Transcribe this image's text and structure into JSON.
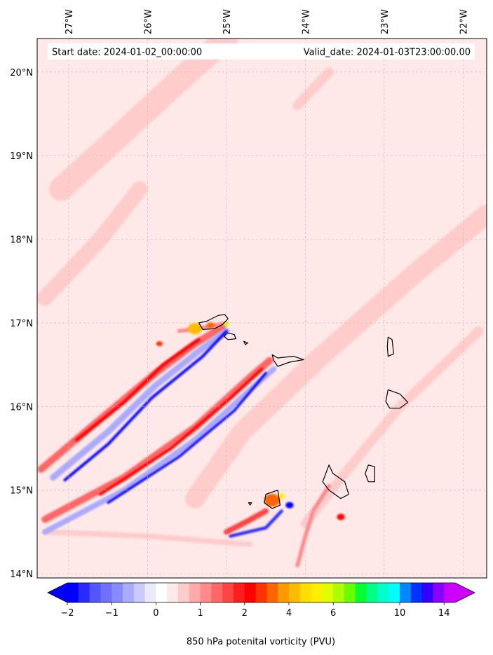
{
  "chart_data": {
    "type": "heatmap",
    "start_label": "Start date: 2024-01-02_00:00:00",
    "valid_label": "Valid_date: 2024-01-03T23:00:00.00",
    "lon_ticks": [
      {
        "value": -27,
        "label": "27°W"
      },
      {
        "value": -26,
        "label": "26°W"
      },
      {
        "value": -25,
        "label": "25°W"
      },
      {
        "value": -24,
        "label": "24°W"
      },
      {
        "value": -23,
        "label": "23°W"
      },
      {
        "value": -22,
        "label": "22°W"
      }
    ],
    "lat_ticks": [
      {
        "value": 14,
        "label": "14°N"
      },
      {
        "value": 15,
        "label": "15°N"
      },
      {
        "value": 16,
        "label": "16°N"
      },
      {
        "value": 17,
        "label": "17°N"
      },
      {
        "value": 18,
        "label": "18°N"
      },
      {
        "value": 19,
        "label": "19°N"
      },
      {
        "value": 20,
        "label": "20°N"
      }
    ],
    "lon_range": [
      -27.4,
      -21.7
    ],
    "lat_range": [
      13.95,
      20.4
    ],
    "grid": true,
    "background_value": 0.1,
    "colorbar": {
      "label": "850 hPa potenital vorticity (PVU)",
      "levels": [
        -2,
        -1.75,
        -1.5,
        -1.25,
        -1,
        -0.75,
        -0.5,
        -0.25,
        0,
        0.25,
        0.5,
        0.75,
        1,
        1.25,
        1.5,
        1.75,
        2,
        2.5,
        3,
        3.5,
        4,
        4.5,
        5,
        5.5,
        6,
        6.5,
        7,
        7.5,
        8,
        9,
        10,
        11,
        12,
        13,
        14
      ],
      "colors": [
        "#0000ff",
        "#2a2aff",
        "#5555ff",
        "#7070ff",
        "#8a8aff",
        "#aaaaff",
        "#cacaff",
        "#eaeaff",
        "#ffffff",
        "#ffe8e8",
        "#ffcccc",
        "#ffaaaa",
        "#ff8a8a",
        "#ff6666",
        "#ff4444",
        "#ff1c1c",
        "#ff0000",
        "#ff3300",
        "#ff6600",
        "#ff9900",
        "#ffbb00",
        "#ffdd00",
        "#ffee00",
        "#ddff00",
        "#aaff00",
        "#66ff00",
        "#00ff33",
        "#00ff88",
        "#00ffcc",
        "#00ffff",
        "#0088ff",
        "#0033ff",
        "#3300ff",
        "#8800ff",
        "#cc00ff"
      ],
      "under_color": "#0000ff",
      "over_color": "#cc00ff",
      "tick_labels": [
        {
          "value": -2,
          "label": "−2"
        },
        {
          "value": -1,
          "label": "−1"
        },
        {
          "value": 0,
          "label": "0"
        },
        {
          "value": 1,
          "label": "1"
        },
        {
          "value": 2,
          "label": "2"
        },
        {
          "value": 4,
          "label": "4"
        },
        {
          "value": 6,
          "label": "6"
        },
        {
          "value": 10,
          "label": "10"
        },
        {
          "value": 14,
          "label": "14"
        }
      ]
    },
    "features": [
      {
        "kind": "band",
        "value": 0.7,
        "pts": [
          [
            -21.7,
            18.3
          ],
          [
            -22.6,
            17.6
          ],
          [
            -23.8,
            16.6
          ],
          [
            -24.8,
            15.7
          ],
          [
            -25.4,
            14.9
          ]
        ],
        "w": 0.25
      },
      {
        "kind": "band",
        "value": 0.6,
        "pts": [
          [
            -21.8,
            16.9
          ],
          [
            -22.8,
            16.0
          ],
          [
            -23.5,
            15.2
          ],
          [
            -24.0,
            14.6
          ]
        ],
        "w": 0.12
      },
      {
        "kind": "band",
        "value": 0.7,
        "pts": [
          [
            -27.1,
            18.6
          ],
          [
            -26.4,
            19.2
          ],
          [
            -25.6,
            19.9
          ],
          [
            -25.0,
            20.4
          ]
        ],
        "w": 0.3
      },
      {
        "kind": "band",
        "value": 0.6,
        "pts": [
          [
            -27.3,
            17.3
          ],
          [
            -26.6,
            18.0
          ],
          [
            -26.1,
            18.6
          ]
        ],
        "w": 0.2
      },
      {
        "kind": "band",
        "value": 0.6,
        "pts": [
          [
            -24.1,
            19.6
          ],
          [
            -23.7,
            20.0
          ]
        ],
        "w": 0.12
      },
      {
        "kind": "band",
        "value": 0.5,
        "pts": [
          [
            -27.3,
            14.5
          ],
          [
            -26.0,
            14.45
          ],
          [
            -24.7,
            14.35
          ]
        ],
        "w": 0.07
      },
      {
        "kind": "band",
        "value": 1.3,
        "pts": [
          [
            -27.35,
            15.25
          ],
          [
            -26.6,
            15.85
          ],
          [
            -25.9,
            16.4
          ],
          [
            -25.4,
            16.75
          ],
          [
            -25.05,
            16.95
          ]
        ],
        "w": 0.09
      },
      {
        "kind": "band",
        "value": 2.0,
        "pts": [
          [
            -26.9,
            15.6
          ],
          [
            -26.3,
            16.05
          ],
          [
            -25.8,
            16.5
          ],
          [
            -25.35,
            16.8
          ]
        ],
        "w": 0.04
      },
      {
        "kind": "band",
        "value": -0.6,
        "pts": [
          [
            -27.2,
            15.15
          ],
          [
            -26.5,
            15.7
          ],
          [
            -25.9,
            16.25
          ],
          [
            -25.3,
            16.7
          ],
          [
            -25.0,
            16.9
          ]
        ],
        "w": 0.08
      },
      {
        "kind": "band",
        "value": -1.9,
        "pts": [
          [
            -27.05,
            15.12
          ],
          [
            -26.5,
            15.55
          ],
          [
            -25.95,
            16.1
          ],
          [
            -25.3,
            16.6
          ],
          [
            -25.0,
            16.9
          ]
        ],
        "w": 0.035
      },
      {
        "kind": "band",
        "value": 1.3,
        "pts": [
          [
            -27.3,
            14.65
          ],
          [
            -26.3,
            15.15
          ],
          [
            -25.4,
            15.75
          ],
          [
            -24.7,
            16.35
          ],
          [
            -24.45,
            16.55
          ]
        ],
        "w": 0.09
      },
      {
        "kind": "band",
        "value": 2.0,
        "pts": [
          [
            -26.6,
            14.95
          ],
          [
            -25.7,
            15.5
          ],
          [
            -24.95,
            16.1
          ],
          [
            -24.55,
            16.45
          ]
        ],
        "w": 0.035
      },
      {
        "kind": "band",
        "value": -0.6,
        "pts": [
          [
            -27.3,
            14.5
          ],
          [
            -26.3,
            15.0
          ],
          [
            -25.4,
            15.6
          ],
          [
            -24.7,
            16.2
          ],
          [
            -24.4,
            16.45
          ]
        ],
        "w": 0.07
      },
      {
        "kind": "band",
        "value": -1.9,
        "pts": [
          [
            -26.5,
            14.85
          ],
          [
            -25.6,
            15.4
          ],
          [
            -24.9,
            15.95
          ],
          [
            -24.5,
            16.4
          ]
        ],
        "w": 0.03
      },
      {
        "kind": "band",
        "value": 1.6,
        "pts": [
          [
            -25.0,
            14.5
          ],
          [
            -24.75,
            14.62
          ],
          [
            -24.5,
            14.75
          ]
        ],
        "w": 0.07
      },
      {
        "kind": "band",
        "value": -1.6,
        "pts": [
          [
            -24.95,
            14.45
          ],
          [
            -24.5,
            14.55
          ],
          [
            -24.3,
            14.75
          ]
        ],
        "w": 0.04
      },
      {
        "kind": "band",
        "value": 1.1,
        "pts": [
          [
            -23.7,
            15.05
          ],
          [
            -23.9,
            14.75
          ],
          [
            -24.0,
            14.45
          ],
          [
            -24.1,
            14.1
          ]
        ],
        "w": 0.05
      },
      {
        "kind": "band",
        "value": 1.2,
        "pts": [
          [
            -25.6,
            16.9
          ],
          [
            -25.25,
            16.95
          ],
          [
            -25.0,
            17.0
          ]
        ],
        "w": 0.05
      },
      {
        "kind": "blob",
        "lon": -25.4,
        "lat": 16.93,
        "r": 0.09,
        "value": 4.0
      },
      {
        "kind": "blob",
        "lon": -25.2,
        "lat": 16.97,
        "r": 0.05,
        "value": 3.0
      },
      {
        "kind": "blob",
        "lon": -25.0,
        "lat": 16.99,
        "r": 0.035,
        "value": 5.5
      },
      {
        "kind": "blob",
        "lon": -24.42,
        "lat": 14.88,
        "r": 0.1,
        "value": 3.2
      },
      {
        "kind": "blob",
        "lon": -24.3,
        "lat": 14.93,
        "r": 0.04,
        "value": 5.0
      },
      {
        "kind": "blob",
        "lon": -24.2,
        "lat": 14.82,
        "r": 0.05,
        "value": -1.8
      },
      {
        "kind": "blob",
        "lon": -23.55,
        "lat": 14.68,
        "r": 0.05,
        "value": 2.2
      },
      {
        "kind": "blob",
        "lon": -25.85,
        "lat": 16.75,
        "r": 0.04,
        "value": 2.5
      }
    ],
    "islands": [
      {
        "name": "Santo Antao",
        "pts": [
          [
            -25.35,
            17.0
          ],
          [
            -25.25,
            17.02
          ],
          [
            -25.1,
            17.09
          ],
          [
            -25.02,
            17.1
          ],
          [
            -24.98,
            17.05
          ],
          [
            -25.05,
            16.98
          ],
          [
            -25.15,
            16.93
          ],
          [
            -25.3,
            16.92
          ]
        ]
      },
      {
        "name": "Sao Vicente",
        "pts": [
          [
            -24.99,
            16.88
          ],
          [
            -24.9,
            16.86
          ],
          [
            -24.88,
            16.81
          ],
          [
            -24.98,
            16.8
          ],
          [
            -25.03,
            16.84
          ]
        ]
      },
      {
        "name": "Santa Luzia",
        "pts": [
          [
            -24.78,
            16.78
          ],
          [
            -24.73,
            16.76
          ],
          [
            -24.76,
            16.74
          ]
        ]
      },
      {
        "name": "Sao Nicolau",
        "pts": [
          [
            -24.42,
            16.62
          ],
          [
            -24.35,
            16.58
          ],
          [
            -24.15,
            16.6
          ],
          [
            -24.02,
            16.56
          ],
          [
            -24.2,
            16.53
          ],
          [
            -24.35,
            16.48
          ],
          [
            -24.4,
            16.55
          ]
        ]
      },
      {
        "name": "Sal",
        "pts": [
          [
            -22.95,
            16.83
          ],
          [
            -22.9,
            16.8
          ],
          [
            -22.88,
            16.63
          ],
          [
            -22.95,
            16.6
          ],
          [
            -22.96,
            16.72
          ]
        ]
      },
      {
        "name": "Boa Vista",
        "pts": [
          [
            -22.95,
            16.2
          ],
          [
            -22.8,
            16.15
          ],
          [
            -22.7,
            16.05
          ],
          [
            -22.8,
            15.98
          ],
          [
            -22.93,
            15.98
          ],
          [
            -22.98,
            16.06
          ]
        ]
      },
      {
        "name": "Maio",
        "pts": [
          [
            -23.2,
            15.3
          ],
          [
            -23.12,
            15.28
          ],
          [
            -23.12,
            15.1
          ],
          [
            -23.2,
            15.1
          ],
          [
            -23.24,
            15.2
          ]
        ]
      },
      {
        "name": "Santiago",
        "pts": [
          [
            -23.7,
            15.3
          ],
          [
            -23.65,
            15.2
          ],
          [
            -23.5,
            15.1
          ],
          [
            -23.45,
            14.95
          ],
          [
            -23.55,
            14.9
          ],
          [
            -23.7,
            15.0
          ],
          [
            -23.78,
            15.1
          ]
        ]
      },
      {
        "name": "Fogo",
        "pts": [
          [
            -24.5,
            14.95
          ],
          [
            -24.35,
            15.0
          ],
          [
            -24.32,
            14.82
          ],
          [
            -24.42,
            14.78
          ],
          [
            -24.52,
            14.85
          ]
        ]
      },
      {
        "name": "Brava",
        "pts": [
          [
            -24.72,
            14.85
          ],
          [
            -24.68,
            14.85
          ],
          [
            -24.7,
            14.82
          ]
        ]
      }
    ]
  }
}
